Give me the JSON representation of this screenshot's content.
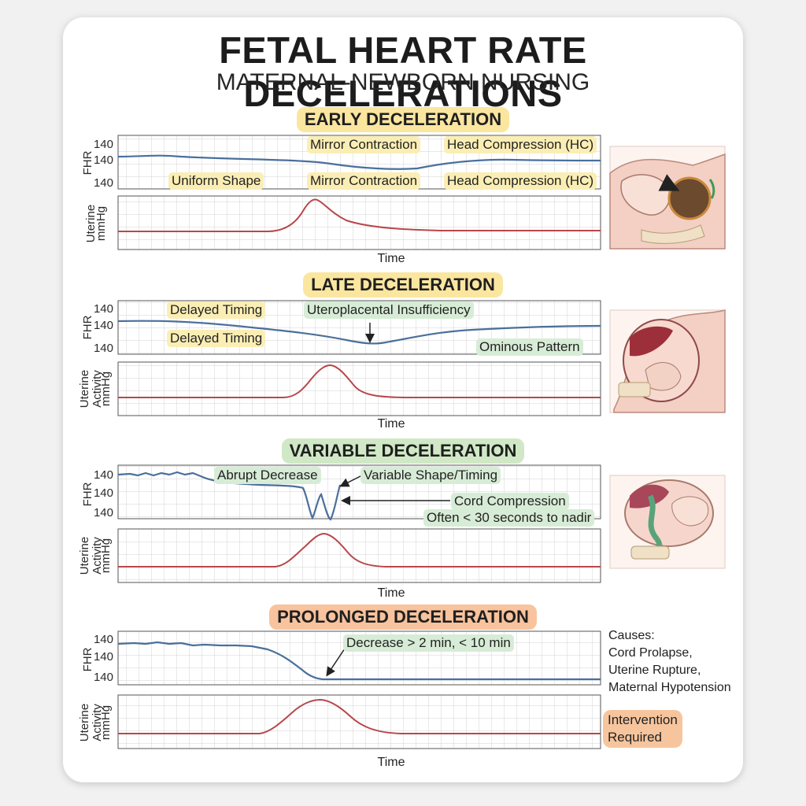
{
  "title": "FETAL HEART RATE DECELERATIONS",
  "subtitle": "MATERNAL-NEWBORN NURSING",
  "axis": {
    "fhr_label": "FHR",
    "uterine_label": "Uterine",
    "activity_label": "Activity",
    "unit_label": "mmHg",
    "tick": "140",
    "time_label": "Time"
  },
  "sections": {
    "early": {
      "heading": "EARLY DECELERATION",
      "heading_color": "#fbe6a0",
      "labels": [
        "Mirror Contraction",
        "Head Compression (HC)",
        "Uniform Shape",
        "Mirror Contraction",
        "Head Compression (HC)"
      ]
    },
    "late": {
      "heading": "LATE DECELERATION",
      "heading_color": "#fbe6a0",
      "labels": [
        "Delayed Timing",
        "Uteroplacental Insufficiency",
        "Delayed Timing",
        "Ominous Pattern"
      ]
    },
    "variable": {
      "heading": "VARIABLE DECELERATION",
      "heading_color": "#d0e8c6",
      "labels": [
        "Abrupt Decrease",
        "Variable Shape/Timing",
        "Cord Compression",
        "Often < 30 seconds to nadir"
      ]
    },
    "prolonged": {
      "heading": "PROLONGED DECELERATION",
      "heading_color": "#f8c39d",
      "labels": [
        "Decrease > 2 min, < 10 min"
      ],
      "causes": [
        "Causes:",
        "Cord Prolapse,",
        "Uterine Rupture,",
        "Maternal Hypotension"
      ],
      "intervention": [
        "Intervention",
        "Required"
      ]
    }
  },
  "colors": {
    "fhr_line": "#4a6f9c",
    "uterine_line": "#b8474b",
    "grid": "#cfcfcf"
  }
}
